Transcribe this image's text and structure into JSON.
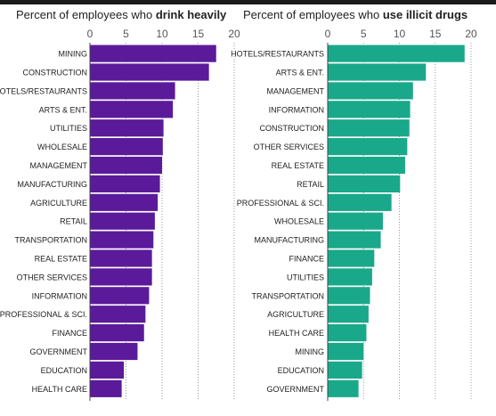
{
  "colors": {
    "drink": "#5b1a9a",
    "drugs": "#1aa88a",
    "gridline": "#999999",
    "text": "#222222"
  },
  "panels": [
    {
      "title_prefix": "Percent of employees who ",
      "title_bold": "drink heavily",
      "color_key": "drink"
    },
    {
      "title_prefix": "Percent of employees who ",
      "title_bold": "use illicit drugs",
      "color_key": "drugs"
    }
  ],
  "chart_data": [
    {
      "type": "bar",
      "orientation": "horizontal",
      "title": "Percent of employees who drink heavily",
      "xlim": [
        0,
        20
      ],
      "xticks": [
        0,
        5,
        10,
        15,
        20
      ],
      "grid": true,
      "categories": [
        "MINING",
        "CONSTRUCTION",
        "HOTELS/RESTAURANTS",
        "ARTS & ENT.",
        "UTILITIES",
        "WHOLESALE",
        "MANAGEMENT",
        "MANUFACTURING",
        "AGRICULTURE",
        "RETAIL",
        "TRANSPORTATION",
        "REAL ESTATE",
        "OTHER SERVICES",
        "INFORMATION",
        "PROFESSIONAL & SCI.",
        "FINANCE",
        "GOVERNMENT",
        "EDUCATION",
        "HEALTH CARE"
      ],
      "values": [
        17.5,
        16.5,
        11.8,
        11.5,
        10.2,
        10.1,
        10.0,
        9.7,
        9.4,
        9.0,
        8.8,
        8.6,
        8.6,
        8.2,
        7.7,
        7.5,
        6.6,
        4.7,
        4.4
      ]
    },
    {
      "type": "bar",
      "orientation": "horizontal",
      "title": "Percent of employees who use illicit drugs",
      "xlim": [
        0,
        20
      ],
      "xticks": [
        0,
        5,
        10,
        15,
        20
      ],
      "grid": true,
      "categories": [
        "HOTELS/RESTAURANTS",
        "ARTS & ENT.",
        "MANAGEMENT",
        "INFORMATION",
        "CONSTRUCTION",
        "OTHER SERVICES",
        "REAL ESTATE",
        "RETAIL",
        "PROFESSIONAL & SCI.",
        "WHOLESALE",
        "MANUFACTURING",
        "FINANCE",
        "UTILITIES",
        "TRANSPORTATION",
        "AGRICULTURE",
        "HEALTH CARE",
        "MINING",
        "EDUCATION",
        "GOVERNMENT"
      ],
      "values": [
        19.1,
        13.7,
        11.9,
        11.5,
        11.4,
        11.1,
        10.8,
        10.1,
        8.9,
        7.7,
        7.4,
        6.5,
        6.2,
        5.9,
        5.7,
        5.4,
        5.0,
        4.8,
        4.3
      ]
    }
  ]
}
